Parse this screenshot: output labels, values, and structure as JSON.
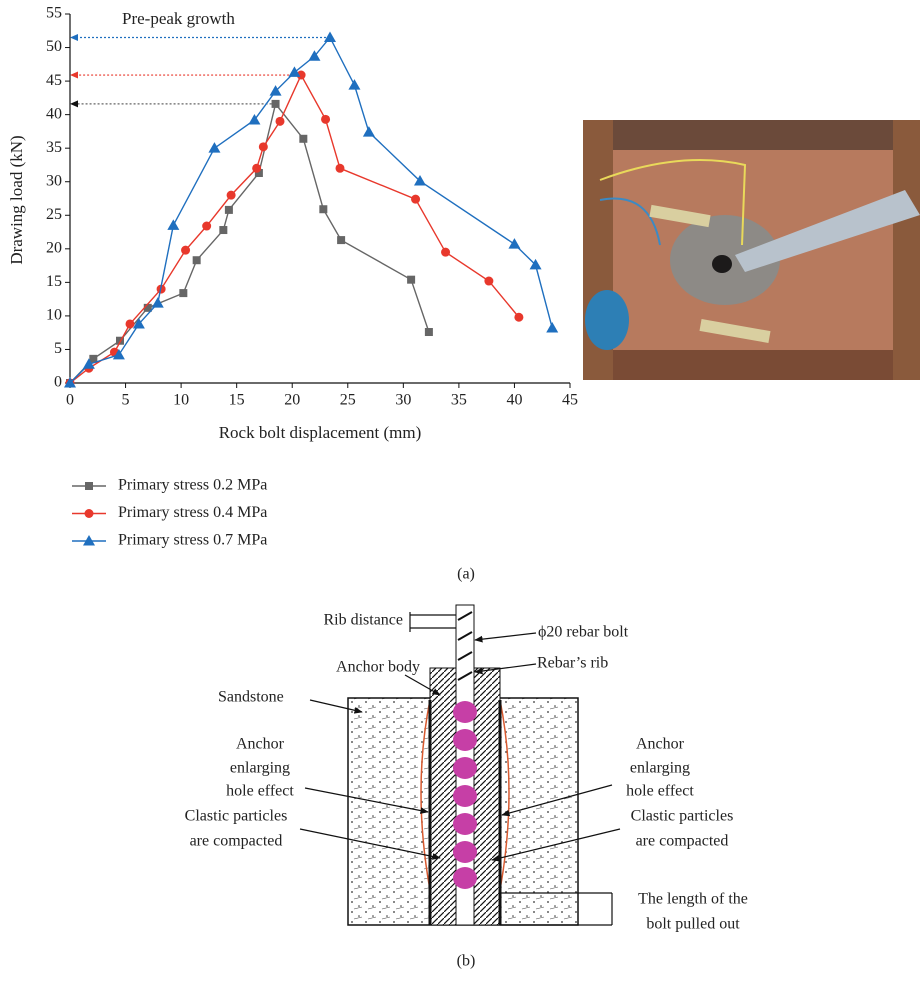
{
  "chart_data": {
    "type": "line",
    "caption": "(a)",
    "annotation": "Pre-peak growth",
    "x_label": "Rock bolt displacement (mm)",
    "y_label": "Drawing load (kN)",
    "xlim": [
      0,
      45
    ],
    "ylim": [
      0,
      55
    ],
    "xticks": [
      0,
      5,
      10,
      15,
      20,
      25,
      30,
      35,
      40,
      45
    ],
    "yticks": [
      0,
      5,
      10,
      15,
      20,
      25,
      30,
      35,
      40,
      45,
      50,
      55
    ],
    "series": [
      {
        "name": "Primary stress 0.2 MPa",
        "color": "#666666",
        "marker": "square",
        "x": [
          0,
          2.1,
          4.5,
          7.0,
          10.2,
          11.4,
          13.8,
          14.3,
          17.0,
          18.5,
          21.0,
          22.8,
          24.4,
          30.7,
          32.3
        ],
        "values": [
          0,
          3.6,
          6.3,
          11.2,
          13.4,
          18.3,
          22.8,
          25.8,
          31.3,
          41.6,
          36.4,
          25.9,
          21.3,
          15.4,
          7.6
        ]
      },
      {
        "name": "Primary stress 0.4 MPa",
        "color": "#e8382c",
        "marker": "circle",
        "x": [
          0,
          1.7,
          4.0,
          5.4,
          8.2,
          10.4,
          12.3,
          14.5,
          16.8,
          17.4,
          18.9,
          20.8,
          23.0,
          24.3,
          31.1,
          33.8,
          37.7,
          40.4
        ],
        "values": [
          0,
          2.2,
          4.6,
          8.8,
          14.0,
          19.8,
          23.4,
          28.0,
          32.0,
          35.2,
          39.0,
          45.9,
          39.3,
          32.0,
          27.4,
          19.5,
          15.2,
          9.8
        ]
      },
      {
        "name": "Primary stress 0.7 MPa",
        "color": "#1f6fbf",
        "marker": "triangle",
        "x": [
          0,
          1.7,
          4.4,
          6.2,
          7.9,
          9.3,
          13.0,
          16.6,
          18.5,
          20.2,
          22.0,
          23.4,
          25.6,
          26.9,
          31.5,
          40.0,
          41.9,
          43.4
        ],
        "values": [
          0,
          2.8,
          4.2,
          8.8,
          11.9,
          23.5,
          35.0,
          39.2,
          43.5,
          46.3,
          48.7,
          51.5,
          44.4,
          37.4,
          30.1,
          20.7,
          17.6,
          8.2
        ]
      }
    ]
  },
  "diagram": {
    "caption": "(b)",
    "rib_distance": "Rib distance",
    "rebar_bolt": "ϕ20 rebar bolt",
    "anchor_body": "Anchor body",
    "rebars_rib": "Rebar’s rib",
    "sandstone": "Sandstone",
    "enlarging_left": [
      "Anchor",
      "enlarging",
      "hole effect"
    ],
    "enlarging_right": [
      "Anchor",
      "enlarging",
      "hole effect"
    ],
    "compacted_left": [
      "Clastic particles",
      "are compacted"
    ],
    "compacted_right": [
      "Clastic particles",
      "are compacted"
    ],
    "pulled_out": [
      "The length of the",
      "bolt pulled out"
    ]
  }
}
